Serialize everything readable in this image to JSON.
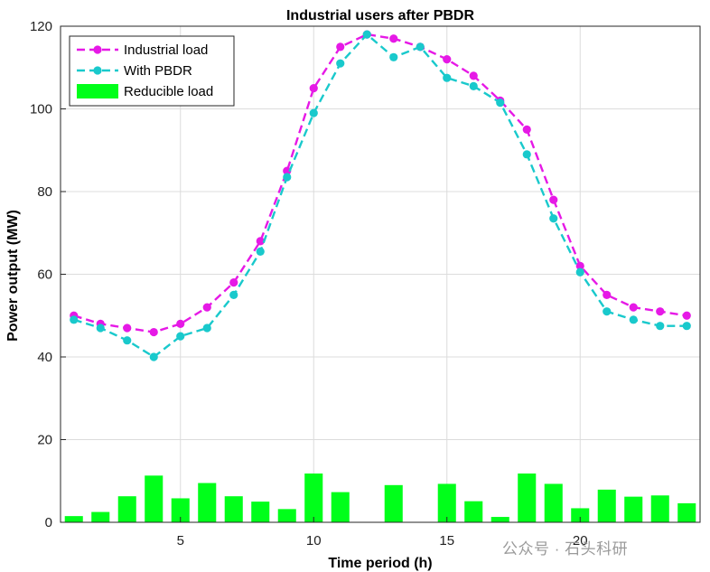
{
  "chart_data": {
    "type": "line",
    "title": "Industrial users after PBDR",
    "xlabel": "Time period (h)",
    "ylabel": "Power output (MW)",
    "xlim": [
      0.5,
      24.5
    ],
    "ylim": [
      0,
      120
    ],
    "xticks": [
      5,
      10,
      15,
      20
    ],
    "yticks": [
      0,
      20,
      40,
      60,
      80,
      100,
      120
    ],
    "grid": true,
    "legend_position": "top-left",
    "x": [
      1,
      2,
      3,
      4,
      5,
      6,
      7,
      8,
      9,
      10,
      11,
      12,
      13,
      14,
      15,
      16,
      17,
      18,
      19,
      20,
      21,
      22,
      23,
      24
    ],
    "series": [
      {
        "name": "Industrial load",
        "kind": "line",
        "color": "#e619e6",
        "values": [
          50,
          48,
          47,
          46,
          48,
          52,
          58,
          68,
          85,
          105,
          115,
          118,
          117,
          115,
          112,
          108,
          102,
          95,
          78,
          62,
          55,
          52,
          51,
          50
        ]
      },
      {
        "name": "With PBDR",
        "kind": "line",
        "color": "#19c9cc",
        "values": [
          49,
          47,
          44,
          40,
          45,
          47,
          55,
          65.5,
          83.5,
          99,
          111,
          118,
          112.5,
          115,
          107.5,
          105.5,
          101.5,
          89,
          73.5,
          60.5,
          51,
          49,
          47.5,
          47.5
        ]
      },
      {
        "name": "Reducible load",
        "kind": "bar",
        "color": "#00ff1a",
        "values": [
          1.5,
          2.5,
          6.3,
          11.3,
          5.8,
          9.5,
          6.3,
          5,
          3.2,
          11.8,
          7.3,
          0,
          9,
          0,
          9.3,
          5.1,
          1.3,
          11.8,
          9.3,
          3.4,
          7.9,
          6.2,
          6.5,
          4.6
        ]
      }
    ]
  },
  "watermark": {
    "text": "公众号 · 石头科研"
  }
}
